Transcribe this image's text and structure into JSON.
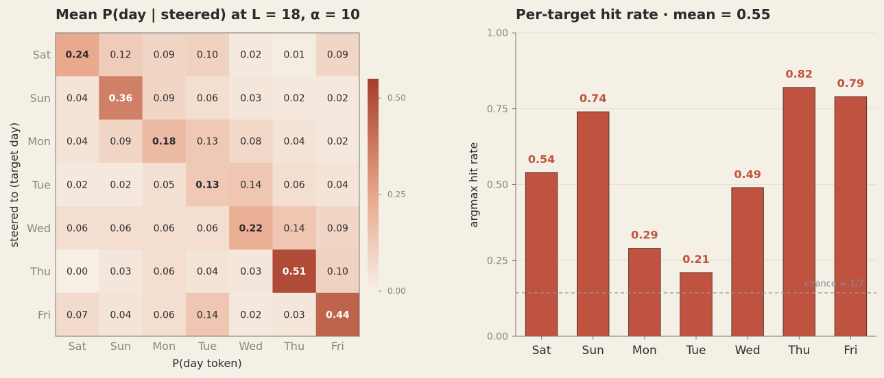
{
  "chart_data": [
    {
      "type": "heatmap",
      "title": "Mean  P(day | steered)  at  L = 18,  α = 10",
      "xlabel": "P(day token)",
      "ylabel": "steered to (target day)",
      "x_categories": [
        "Sat",
        "Sun",
        "Mon",
        "Tue",
        "Wed",
        "Thu",
        "Fri"
      ],
      "y_categories": [
        "Sat",
        "Sun",
        "Mon",
        "Tue",
        "Wed",
        "Thu",
        "Fri"
      ],
      "values": [
        [
          0.24,
          0.12,
          0.09,
          0.1,
          0.02,
          0.01,
          0.09
        ],
        [
          0.04,
          0.36,
          0.09,
          0.06,
          0.03,
          0.02,
          0.02
        ],
        [
          0.04,
          0.09,
          0.18,
          0.13,
          0.08,
          0.04,
          0.02
        ],
        [
          0.02,
          0.02,
          0.05,
          0.13,
          0.14,
          0.06,
          0.04
        ],
        [
          0.06,
          0.06,
          0.06,
          0.06,
          0.22,
          0.14,
          0.09
        ],
        [
          0.0,
          0.03,
          0.06,
          0.04,
          0.03,
          0.51,
          0.1
        ],
        [
          0.07,
          0.04,
          0.06,
          0.14,
          0.02,
          0.03,
          0.44
        ]
      ],
      "colorbar": {
        "range": [
          0,
          0.55
        ],
        "ticks": [
          "0.00",
          "0.25",
          "0.50"
        ],
        "low_color": "#f6efe6",
        "mid_color": "#e8a78a",
        "high_color": "#a63d2a"
      }
    },
    {
      "type": "bar",
      "title": "Per-target hit rate  ·  mean = 0.55",
      "xlabel": "",
      "ylabel": "argmax hit rate",
      "categories": [
        "Sat",
        "Sun",
        "Mon",
        "Tue",
        "Wed",
        "Thu",
        "Fri"
      ],
      "values": [
        0.54,
        0.74,
        0.29,
        0.21,
        0.49,
        0.82,
        0.79
      ],
      "value_labels": [
        "0.54",
        "0.74",
        "0.29",
        "0.21",
        "0.49",
        "0.82",
        "0.79"
      ],
      "ylim": [
        0,
        1.0
      ],
      "yticks": [
        "0.00",
        "0.25",
        "0.50",
        "0.75",
        "1.00"
      ],
      "grid": true,
      "bar_color": "#c0533f",
      "label_color": "#c0533f",
      "reference_line": {
        "value": 0.1429,
        "label": "chance = 1/7"
      }
    }
  ]
}
